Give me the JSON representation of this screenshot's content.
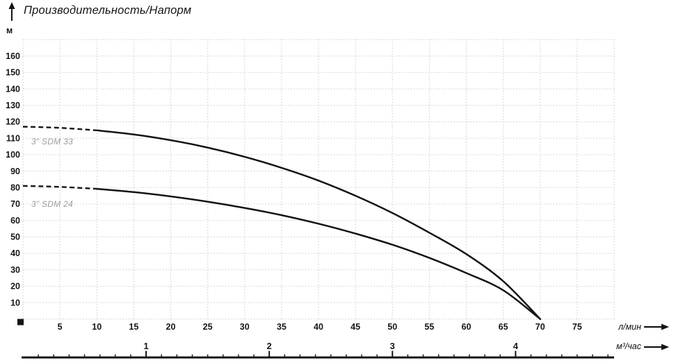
{
  "title": "Производительность/Напорм",
  "y_unit_label": "м",
  "x_primary_unit_label": "л/мин",
  "x_secondary_unit_label": "м³/час",
  "labels": {
    "sdm33": "3” SDM 33",
    "sdm24": "3” SDM 24"
  },
  "colors": {
    "curve": "#141414",
    "grid": "#c7c7c7",
    "axis_text": "#161616",
    "curve_label_text": "#9b9b9b",
    "axis_line": "#141414",
    "background": "#ffffff"
  },
  "chart_data": {
    "type": "line",
    "title": "Производительность/Напорм",
    "ylabel": "м",
    "xlabel_primary": "л/мин",
    "xlabel_secondary": "м³/час",
    "x_range_lmin": [
      0,
      80
    ],
    "y_range_m": [
      0,
      170
    ],
    "x_ticks_lmin": [
      5,
      10,
      15,
      20,
      25,
      30,
      35,
      40,
      45,
      50,
      55,
      60,
      65,
      70,
      75
    ],
    "y_ticks_m": [
      10,
      20,
      30,
      40,
      50,
      60,
      70,
      80,
      90,
      100,
      110,
      120,
      130,
      140,
      150,
      160
    ],
    "x_ticks_m3h": [
      1,
      2,
      3,
      4
    ],
    "lmin_per_m3h": 16.6667,
    "grid": true,
    "grid_step_x_lmin": 5,
    "grid_step_y_m": 10,
    "dashed_until_lmin": 10,
    "legend_position": "inline-curve-labels",
    "series": [
      {
        "name": "3” SDM 33",
        "points": [
          [
            0,
            117
          ],
          [
            5,
            116.3
          ],
          [
            10,
            114.8
          ],
          [
            15,
            112.3
          ],
          [
            20,
            108.8
          ],
          [
            25,
            104.3
          ],
          [
            30,
            98.7
          ],
          [
            35,
            92
          ],
          [
            40,
            84.2
          ],
          [
            45,
            75
          ],
          [
            50,
            64.5
          ],
          [
            55,
            52.5
          ],
          [
            60,
            39.5
          ],
          [
            65,
            23
          ],
          [
            70,
            0
          ]
        ]
      },
      {
        "name": "3” SDM 24",
        "points": [
          [
            0,
            81
          ],
          [
            5,
            80.4
          ],
          [
            10,
            79.2
          ],
          [
            15,
            77.2
          ],
          [
            20,
            74.6
          ],
          [
            25,
            71.4
          ],
          [
            30,
            67.6
          ],
          [
            35,
            63.2
          ],
          [
            40,
            58
          ],
          [
            45,
            52
          ],
          [
            50,
            45.2
          ],
          [
            55,
            37.2
          ],
          [
            60,
            28
          ],
          [
            65,
            17.5
          ],
          [
            70,
            0
          ]
        ]
      }
    ]
  }
}
